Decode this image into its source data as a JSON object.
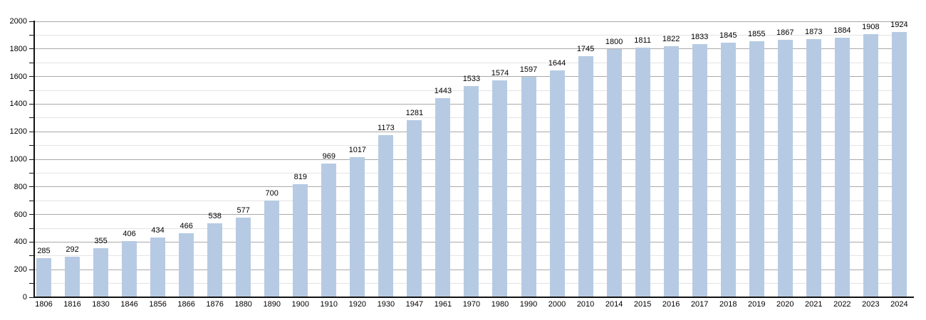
{
  "chart_data": {
    "type": "bar",
    "title": "",
    "xlabel": "",
    "ylabel": "",
    "categories": [
      "1806",
      "1816",
      "1830",
      "1846",
      "1856",
      "1866",
      "1876",
      "1880",
      "1890",
      "1900",
      "1910",
      "1920",
      "1930",
      "1947",
      "1961",
      "1970",
      "1980",
      "1990",
      "2000",
      "2010",
      "2014",
      "2015",
      "2016",
      "2017",
      "2018",
      "2019",
      "2020",
      "2021",
      "2022",
      "2023",
      "2024"
    ],
    "values": [
      285,
      292,
      355,
      406,
      434,
      466,
      538,
      577,
      700,
      819,
      969,
      1017,
      1173,
      1281,
      1443,
      1533,
      1574,
      1597,
      1644,
      1745,
      1800,
      1811,
      1822,
      1833,
      1845,
      1855,
      1867,
      1873,
      1884,
      1908,
      1924
    ],
    "value_labels_shown": true,
    "ylim": [
      0,
      2000
    ],
    "ytick_step": 200,
    "minor_gridline_step": 100,
    "y_tick_labels": [
      "0",
      "200",
      "400",
      "600",
      "800",
      "1000",
      "1200",
      "1400",
      "1600",
      "1800",
      "2000"
    ],
    "grid": "horizontal",
    "legend": false,
    "colors": {
      "bar_fill": "#b6cbe3",
      "major_gridline": "#a9a9a9",
      "minor_gridline": "#e4e4e4",
      "axis": "#111111",
      "text": "#000000",
      "background": "#ffffff"
    }
  }
}
